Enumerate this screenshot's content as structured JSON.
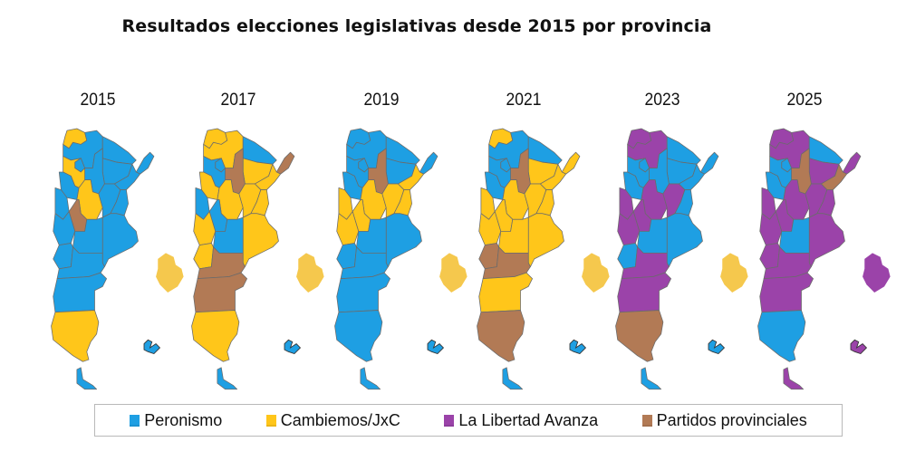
{
  "title": "Resultados elecciones legislativas desde 2015 por provincia",
  "parties": {
    "P": {
      "name": "Peronismo",
      "color": "#1e9fe3"
    },
    "C": {
      "name": "Cambiemos/JxC",
      "color": "#ffc61a"
    },
    "L": {
      "name": "La Libertad Avanza",
      "color": "#9b43a9"
    },
    "R": {
      "name": "Partidos provinciales",
      "color": "#b27a55"
    }
  },
  "caba_colors": {
    "C": "#f5c84d",
    "L": "#9b43a9"
  },
  "legend": [
    {
      "key": "P",
      "label": "Peronismo"
    },
    {
      "key": "C",
      "label": "Cambiemos/JxC"
    },
    {
      "key": "L",
      "label": "La Libertad Avanza"
    },
    {
      "key": "R",
      "label": "Partidos provinciales"
    }
  ],
  "chart_data": {
    "type": "map",
    "title": "Resultados elecciones legislativas desde 2015 por provincia",
    "legend_placement": "bottom",
    "provinces": [
      "Jujuy",
      "Salta",
      "Formosa",
      "Chaco",
      "Misiones",
      "Corrientes",
      "Tucumán",
      "Santiago del Estero",
      "Catamarca",
      "La Rioja",
      "San Juan",
      "Córdoba",
      "Santa Fe",
      "Entre Ríos",
      "San Luis",
      "Mendoza",
      "Buenos Aires",
      "La Pampa",
      "Neuquén",
      "Río Negro",
      "Chubut",
      "Santa Cruz",
      "Tierra del Fuego",
      "CABA",
      "Islas Malvinas"
    ],
    "years": [
      {
        "year": "2015",
        "results": {
          "Jujuy": "C",
          "Salta": "P",
          "Formosa": "P",
          "Chaco": "P",
          "Misiones": "P",
          "Corrientes": "P",
          "Tucumán": "P",
          "Santiago del Estero": "P",
          "Catamarca": "C",
          "La Rioja": "P",
          "San Juan": "P",
          "Córdoba": "C",
          "Santa Fe": "P",
          "Entre Ríos": "P",
          "San Luis": "R",
          "Mendoza": "P",
          "Buenos Aires": "P",
          "La Pampa": "P",
          "Neuquén": "P",
          "Río Negro": "P",
          "Chubut": "P",
          "Santa Cruz": "C",
          "Tierra del Fuego": "P",
          "CABA": "C",
          "Islas Malvinas": "P"
        }
      },
      {
        "year": "2017",
        "results": {
          "Jujuy": "C",
          "Salta": "C",
          "Formosa": "P",
          "Chaco": "C",
          "Misiones": "R",
          "Corrientes": "C",
          "Tucumán": "P",
          "Santiago del Estero": "R",
          "Catamarca": "P",
          "La Rioja": "C",
          "San Juan": "P",
          "Córdoba": "C",
          "Santa Fe": "C",
          "Entre Ríos": "C",
          "San Luis": "P",
          "Mendoza": "C",
          "Buenos Aires": "C",
          "La Pampa": "P",
          "Neuquén": "C",
          "Río Negro": "R",
          "Chubut": "R",
          "Santa Cruz": "C",
          "Tierra del Fuego": "P",
          "CABA": "C",
          "Islas Malvinas": "P"
        }
      },
      {
        "year": "2019",
        "results": {
          "Jujuy": "P",
          "Salta": "P",
          "Formosa": "P",
          "Chaco": "P",
          "Misiones": "P",
          "Corrientes": "C",
          "Tucumán": "P",
          "Santiago del Estero": "R",
          "Catamarca": "P",
          "La Rioja": "P",
          "San Juan": "C",
          "Córdoba": "C",
          "Santa Fe": "C",
          "Entre Ríos": "C",
          "San Luis": "C",
          "Mendoza": "C",
          "Buenos Aires": "P",
          "La Pampa": "P",
          "Neuquén": "P",
          "Río Negro": "P",
          "Chubut": "P",
          "Santa Cruz": "P",
          "Tierra del Fuego": "P",
          "CABA": "C",
          "Islas Malvinas": "P"
        }
      },
      {
        "year": "2021",
        "results": {
          "Jujuy": "C",
          "Salta": "P",
          "Formosa": "P",
          "Chaco": "C",
          "Misiones": "C",
          "Corrientes": "C",
          "Tucumán": "P",
          "Santiago del Estero": "R",
          "Catamarca": "P",
          "La Rioja": "P",
          "San Juan": "C",
          "Córdoba": "C",
          "Santa Fe": "C",
          "Entre Ríos": "C",
          "San Luis": "C",
          "Mendoza": "C",
          "Buenos Aires": "C",
          "La Pampa": "C",
          "Neuquén": "R",
          "Río Negro": "R",
          "Chubut": "C",
          "Santa Cruz": "R",
          "Tierra del Fuego": "P",
          "CABA": "C",
          "Islas Malvinas": "P"
        }
      },
      {
        "year": "2023",
        "results": {
          "Jujuy": "L",
          "Salta": "L",
          "Formosa": "P",
          "Chaco": "P",
          "Misiones": "P",
          "Corrientes": "P",
          "Tucumán": "P",
          "Santiago del Estero": "P",
          "Catamarca": "P",
          "La Rioja": "P",
          "San Juan": "L",
          "Córdoba": "L",
          "Santa Fe": "L",
          "Entre Ríos": "P",
          "San Luis": "L",
          "Mendoza": "L",
          "Buenos Aires": "P",
          "La Pampa": "P",
          "Neuquén": "P",
          "Río Negro": "L",
          "Chubut": "L",
          "Santa Cruz": "R",
          "Tierra del Fuego": "P",
          "CABA": "C",
          "Islas Malvinas": "P"
        }
      },
      {
        "year": "2025",
        "results": {
          "Jujuy": "L",
          "Salta": "L",
          "Formosa": "P",
          "Chaco": "L",
          "Misiones": "L",
          "Corrientes": "R",
          "Tucumán": "P",
          "Santiago del Estero": "R",
          "Catamarca": "P",
          "La Rioja": "P",
          "San Juan": "L",
          "Córdoba": "L",
          "Santa Fe": "L",
          "Entre Ríos": "L",
          "San Luis": "L",
          "Mendoza": "L",
          "Buenos Aires": "L",
          "La Pampa": "P",
          "Neuquén": "L",
          "Río Negro": "L",
          "Chubut": "L",
          "Santa Cruz": "P",
          "Tierra del Fuego": "L",
          "CABA": "L",
          "Islas Malvinas": "L"
        }
      }
    ]
  }
}
